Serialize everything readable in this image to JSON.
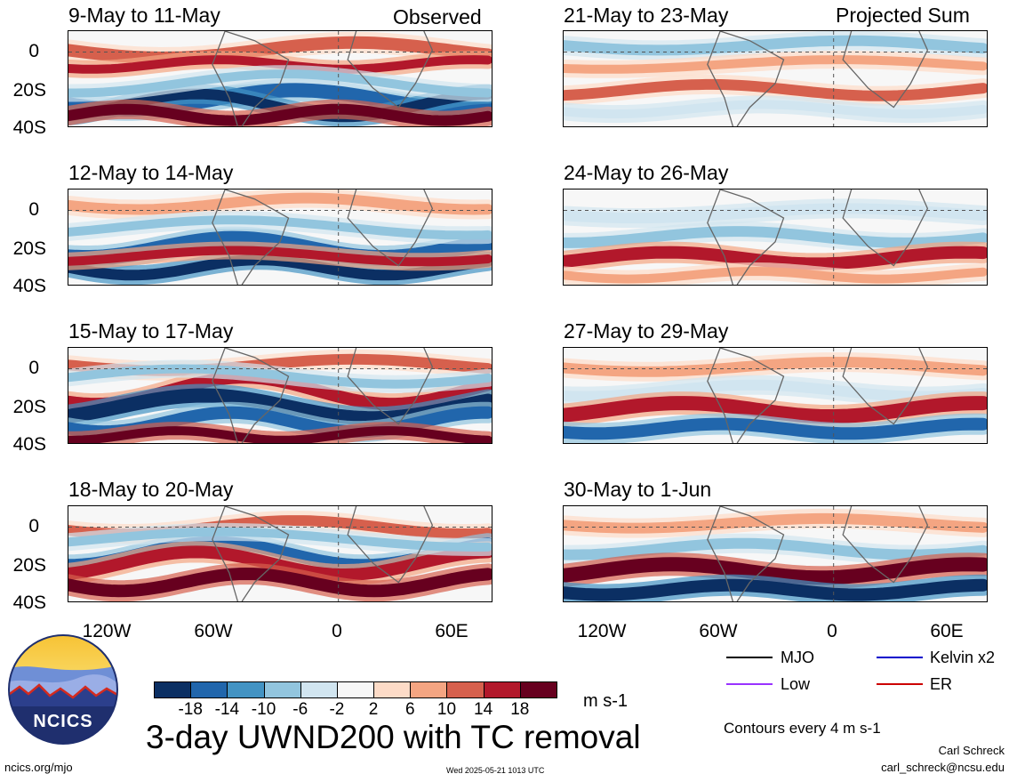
{
  "figure": {
    "title": "3-day UWND200 with TC removal",
    "units": "m s-1",
    "contour_note": "Contours every 4 m s-1",
    "author": "Carl Schreck",
    "email": "carl_schreck@ncsu.edu",
    "url": "ncics.org/mjo",
    "timestamp": "Wed 2025-05-21 1013 UTC",
    "logo_text": "NCICS"
  },
  "columns": {
    "left": "Observed",
    "right": "Projected Sum"
  },
  "panels_left": [
    {
      "title": "9-May to 11-May"
    },
    {
      "title": "12-May to 14-May"
    },
    {
      "title": "15-May to 17-May"
    },
    {
      "title": "18-May to 20-May"
    }
  ],
  "panels_right": [
    {
      "title": "21-May to 23-May"
    },
    {
      "title": "24-May to 26-May"
    },
    {
      "title": "27-May to 29-May"
    },
    {
      "title": "30-May to 1-Jun"
    }
  ],
  "axes": {
    "y_ticks": [
      "0",
      "20S",
      "40S"
    ],
    "x_ticks": [
      "120W",
      "60W",
      "0",
      "60E"
    ]
  },
  "colorbar": {
    "labels": [
      "-18",
      "-14",
      "-10",
      "-6",
      "-2",
      "2",
      "6",
      "10",
      "14",
      "18"
    ],
    "colors": [
      "#0b2f63",
      "#2166ac",
      "#4393c3",
      "#92c5de",
      "#d1e5f0",
      "#f7f7f7",
      "#fddbc7",
      "#f4a582",
      "#d6604d",
      "#b2182b",
      "#67001f"
    ]
  },
  "legend": [
    {
      "label": "MJO",
      "color": "#000000"
    },
    {
      "label": "Kelvin x2",
      "color": "#0000cc"
    },
    {
      "label": "Low",
      "color": "#9933ff"
    },
    {
      "label": "ER",
      "color": "#cc0000"
    }
  ],
  "chart_data": {
    "type": "heatmap",
    "title": "3-day UWND200 with TC removal",
    "units": "m s-1",
    "lon_ticks": [
      "120W",
      "60W",
      "0",
      "60E"
    ],
    "lat_ticks": [
      "0",
      "20S",
      "40S"
    ],
    "observed_periods": [
      "9-May to 11-May",
      "12-May to 14-May",
      "15-May to 17-May",
      "18-May to 20-May"
    ],
    "projected_periods": [
      "21-May to 23-May",
      "24-May to 26-May",
      "27-May to 29-May",
      "30-May to 1-Jun"
    ],
    "color_levels": [
      -18,
      -14,
      -10,
      -6,
      -2,
      2,
      6,
      10,
      14,
      18
    ],
    "overlay_contour_interval": 4,
    "overlay_types": [
      "MJO",
      "Kelvin x2",
      "Low",
      "ER"
    ]
  }
}
